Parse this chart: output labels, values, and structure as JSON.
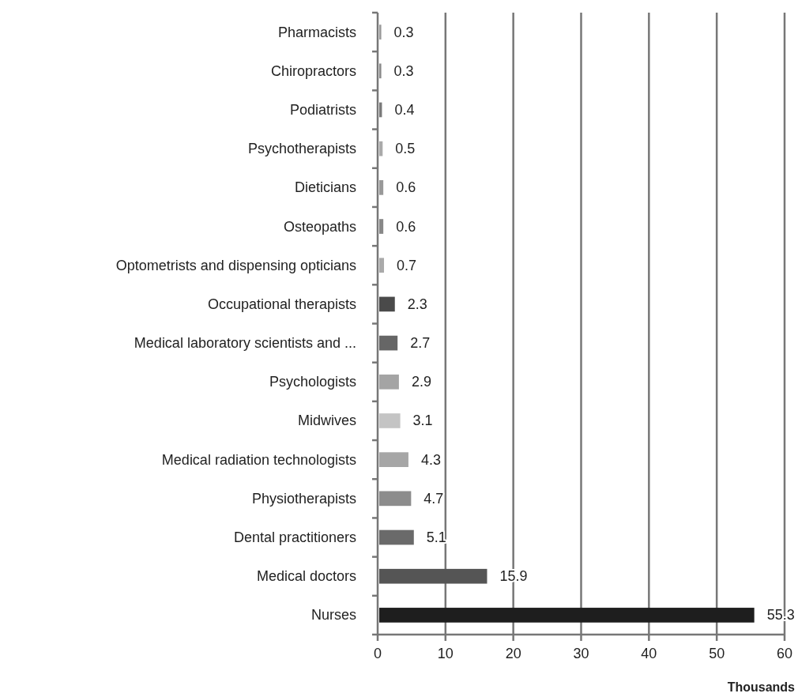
{
  "chart_data": {
    "type": "bar",
    "orientation": "horizontal",
    "xlabel": "Thousands",
    "categories": [
      "Pharmacists",
      "Chiropractors",
      "Podiatrists",
      "Psychotherapists",
      "Dieticians",
      "Osteopaths",
      "Optometrists and dispensing opticians",
      "Occupational therapists",
      "Medical laboratory scientists and ...",
      "Psychologists",
      "Midwives",
      "Medical radiation technologists",
      "Physiotherapists",
      "Dental practitioners",
      "Medical doctors",
      "Nurses"
    ],
    "values": [
      0.3,
      0.3,
      0.4,
      0.5,
      0.6,
      0.6,
      0.7,
      2.3,
      2.7,
      2.9,
      3.1,
      4.3,
      4.7,
      5.1,
      15.9,
      55.3
    ],
    "colors": [
      "#9a9a9a",
      "#8a8a8a",
      "#7a7a7a",
      "#aaaaaa",
      "#999999",
      "#888888",
      "#aaaaaa",
      "#4a4a4a",
      "#666666",
      "#a4a4a4",
      "#c4c4c4",
      "#a6a6a6",
      "#8c8c8c",
      "#6a6a6a",
      "#555555",
      "#1e1e1e"
    ],
    "xlim": [
      0,
      60
    ],
    "xticks": [
      0,
      10,
      20,
      30,
      40,
      50,
      60
    ],
    "grid": "x",
    "data_labels": true
  }
}
